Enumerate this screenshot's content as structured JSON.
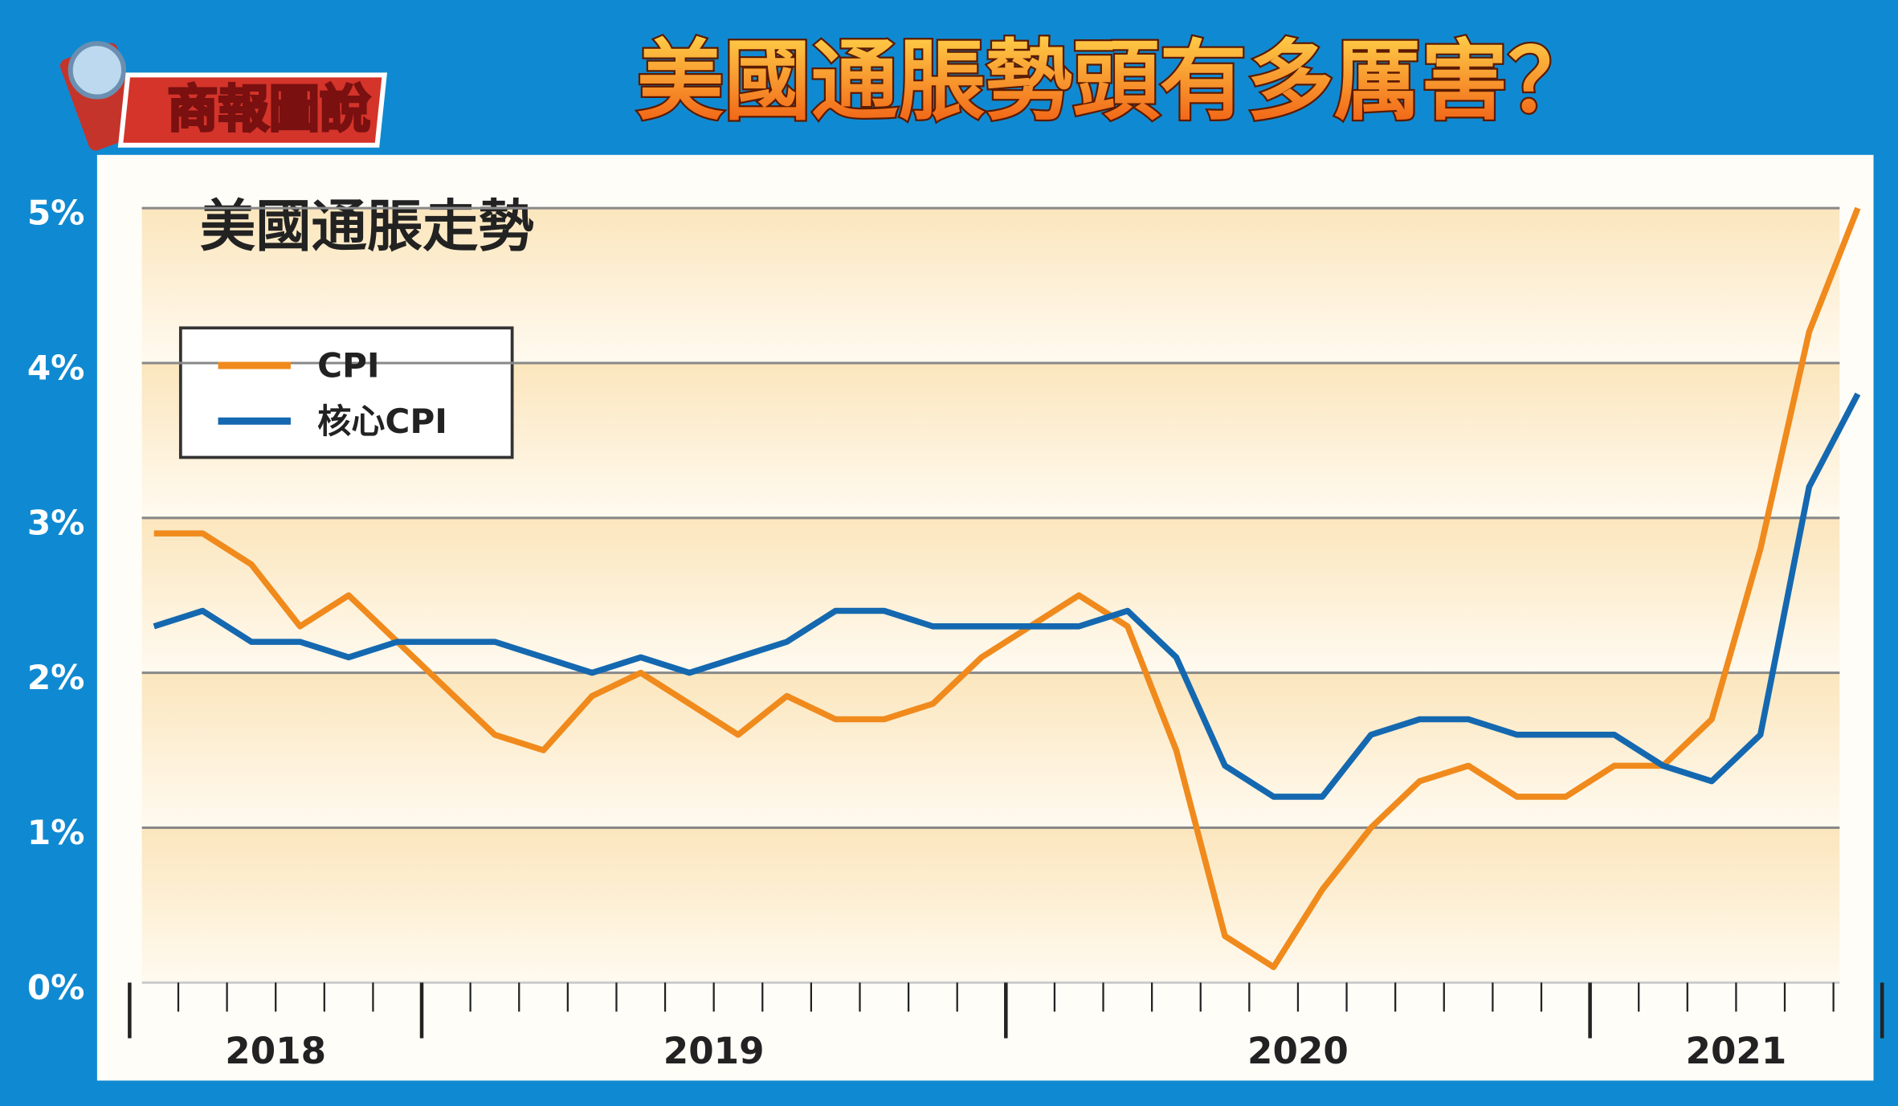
{
  "header": {
    "badge": "商報圖說",
    "title": "美國通脹勢頭有多厲害？"
  },
  "chart_data": {
    "type": "line",
    "title": "美國通脹走勢",
    "categories": [
      null,
      null,
      null,
      null,
      null,
      null,
      null,
      null,
      null,
      null,
      null,
      null,
      null,
      null,
      null,
      null,
      null,
      null,
      null,
      null,
      null,
      null,
      null,
      null,
      null,
      null,
      null,
      null,
      null,
      null,
      null,
      null,
      null,
      null,
      null,
      null
    ],
    "year_labels": [
      "2018",
      "2019",
      "2020",
      "2021"
    ],
    "series": [
      {
        "name": "CPI",
        "color": "#f08a1c",
        "values": [
          2.9,
          2.9,
          2.7,
          2.3,
          2.5,
          2.2,
          1.9,
          1.6,
          1.5,
          1.85,
          2.0,
          1.8,
          1.6,
          1.85,
          1.7,
          1.7,
          1.8,
          2.1,
          2.3,
          2.5,
          2.3,
          1.5,
          0.3,
          0.1,
          0.6,
          1.0,
          1.3,
          1.4,
          1.2,
          1.2,
          1.4,
          1.4,
          1.7,
          2.8,
          4.2,
          5.0
        ]
      },
      {
        "name": "核心CPI",
        "color": "#1468b0",
        "values": [
          2.3,
          2.4,
          2.2,
          2.2,
          2.1,
          2.2,
          2.2,
          2.2,
          2.1,
          2.0,
          2.1,
          2.0,
          2.1,
          2.2,
          2.4,
          2.4,
          2.3,
          2.3,
          2.3,
          2.3,
          2.4,
          2.1,
          1.4,
          1.2,
          1.2,
          1.6,
          1.7,
          1.7,
          1.6,
          1.6,
          1.6,
          1.4,
          1.3,
          1.6,
          3.2,
          3.8
        ]
      }
    ],
    "ylim": [
      0,
      5
    ],
    "yticks": [
      {
        "value": 0,
        "label": "0%"
      },
      {
        "value": 1,
        "label": "1%"
      },
      {
        "value": 2,
        "label": "2%"
      },
      {
        "value": 3,
        "label": "3%"
      },
      {
        "value": 4,
        "label": "4%"
      },
      {
        "value": 5,
        "label": "5%"
      }
    ],
    "grid": true
  }
}
